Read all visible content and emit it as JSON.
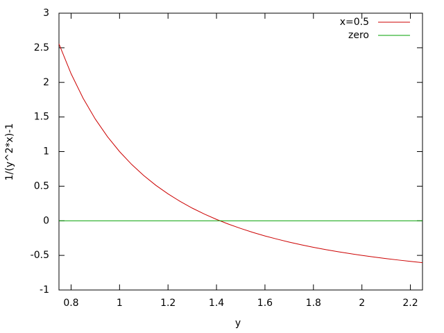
{
  "chart_data": {
    "type": "line",
    "xlabel": "y",
    "ylabel": "1/(y^2*x)-1",
    "xlim": [
      0.75,
      2.25
    ],
    "ylim": [
      -1,
      3
    ],
    "xticks": [
      0.8,
      1,
      1.2,
      1.4,
      1.6,
      1.8,
      2,
      2.2
    ],
    "yticks": [
      -1,
      -0.5,
      0,
      0.5,
      1,
      1.5,
      2,
      2.5,
      3
    ],
    "grid": false,
    "legend": "top-right",
    "series": [
      {
        "name": "x=0.5",
        "color": "#cc0000",
        "x": [
          0.75,
          0.8,
          0.85,
          0.9,
          0.95,
          1,
          1.05,
          1.1,
          1.15,
          1.2,
          1.25,
          1.3,
          1.35,
          1.4,
          1.45,
          1.5,
          1.55,
          1.6,
          1.65,
          1.7,
          1.75,
          1.8,
          1.85,
          1.9,
          1.95,
          2,
          2.05,
          2.1,
          2.15,
          2.2,
          2.25
        ],
        "values": [
          2.556,
          2.125,
          1.768,
          1.469,
          1.216,
          1.0,
          0.814,
          0.653,
          0.512,
          0.389,
          0.28,
          0.183,
          0.097,
          0.02,
          -0.049,
          -0.111,
          -0.168,
          -0.219,
          -0.265,
          -0.308,
          -0.347,
          -0.383,
          -0.416,
          -0.446,
          -0.474,
          -0.5,
          -0.524,
          -0.546,
          -0.567,
          -0.587,
          -0.605
        ]
      },
      {
        "name": "zero",
        "color": "#00a000",
        "x": [
          0.75,
          2.25
        ],
        "values": [
          0,
          0
        ]
      }
    ]
  }
}
